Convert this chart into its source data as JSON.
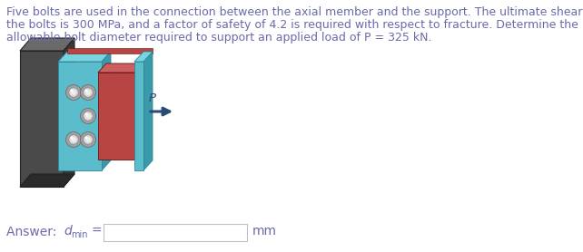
{
  "text_line1": "Five bolts are used in the connection between the axial member and the support. The ultimate shear strength of",
  "text_line2": "the bolts is 300 MPa, and a factor of safety of 4.2 is required with respect to fracture. Determine the minimum",
  "text_line3": "allowable bolt diameter required to support an applied load of P = 325 kN.",
  "bg_color": "#ffffff",
  "text_color": "#6a6aaa",
  "font_size_text": 9.0,
  "font_size_answer": 10.0,
  "wall_face_color": "#4a4a4a",
  "wall_top_color": "#6a6a6a",
  "wall_side_color": "#383838",
  "plate_teal_face": "#5bbccc",
  "plate_teal_top": "#7ad4e0",
  "plate_teal_side": "#3a9aaa",
  "plate_red_face": "#b84444",
  "plate_red_top": "#cc6060",
  "plate_red_side": "#8a2828",
  "bolt_outer": "#c8c8c8",
  "bolt_inner": "#e0e0e0",
  "bolt_edge": "#888888",
  "arrow_color": "#2a4a78",
  "p_color": "#2a4a78",
  "input_box_edge": "#c0c0c0"
}
